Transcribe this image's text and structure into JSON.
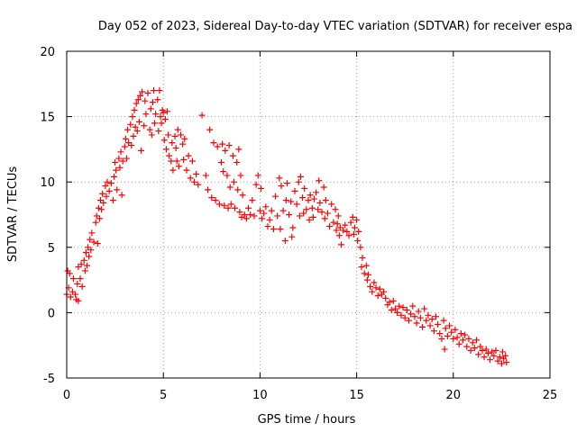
{
  "chart_data": {
    "type": "scatter",
    "title": "Day 052 of 2023, Sidereal Day-to-day VTEC variation (SDTVAR) for receiver espa",
    "xlabel": "GPS time / hours",
    "ylabel": "SDTVAR / TECUs",
    "xlim": [
      0,
      25
    ],
    "ylim": [
      -5,
      20
    ],
    "x_ticks": [
      "0",
      "5",
      "10",
      "15",
      "20",
      "25"
    ],
    "y_ticks": [
      "-5",
      "0",
      "5",
      "10",
      "15",
      "20"
    ],
    "grid": true,
    "marker": "+",
    "series": [
      {
        "name": "SDTVAR",
        "color": "#ff0000",
        "points": [
          [
            0.0,
            1.4
          ],
          [
            0.05,
            3.2
          ],
          [
            0.1,
            1.9
          ],
          [
            0.15,
            3.0
          ],
          [
            0.2,
            1.2
          ],
          [
            0.3,
            1.6
          ],
          [
            0.35,
            2.6
          ],
          [
            0.45,
            1.4
          ],
          [
            0.5,
            1.0
          ],
          [
            0.6,
            0.9
          ],
          [
            0.55,
            2.2
          ],
          [
            0.6,
            3.5
          ],
          [
            0.7,
            2.6
          ],
          [
            0.75,
            3.7
          ],
          [
            0.8,
            2.0
          ],
          [
            0.9,
            4.0
          ],
          [
            0.95,
            3.2
          ],
          [
            1.0,
            4.6
          ],
          [
            1.05,
            3.6
          ],
          [
            1.1,
            5.0
          ],
          [
            1.15,
            4.3
          ],
          [
            1.2,
            5.6
          ],
          [
            1.25,
            4.8
          ],
          [
            1.3,
            6.1
          ],
          [
            1.4,
            5.4
          ],
          [
            1.5,
            6.9
          ],
          [
            1.55,
            7.4
          ],
          [
            1.6,
            5.3
          ],
          [
            1.65,
            8.0
          ],
          [
            1.7,
            7.2
          ],
          [
            1.75,
            8.6
          ],
          [
            1.8,
            7.9
          ],
          [
            1.85,
            9.1
          ],
          [
            1.9,
            8.4
          ],
          [
            2.0,
            9.7
          ],
          [
            2.05,
            8.9
          ],
          [
            2.1,
            10.0
          ],
          [
            2.2,
            9.3
          ],
          [
            2.3,
            9.9
          ],
          [
            2.4,
            8.6
          ],
          [
            2.45,
            10.4
          ],
          [
            2.5,
            11.5
          ],
          [
            2.55,
            10.9
          ],
          [
            2.6,
            9.4
          ],
          [
            2.7,
            11.8
          ],
          [
            2.75,
            11.1
          ],
          [
            2.8,
            12.3
          ],
          [
            2.85,
            9.0
          ],
          [
            2.9,
            11.6
          ],
          [
            3.0,
            12.7
          ],
          [
            3.05,
            13.3
          ],
          [
            3.1,
            11.8
          ],
          [
            3.15,
            14.0
          ],
          [
            3.2,
            13.0
          ],
          [
            3.3,
            14.4
          ],
          [
            3.35,
            12.8
          ],
          [
            3.4,
            15.0
          ],
          [
            3.45,
            13.5
          ],
          [
            3.5,
            15.5
          ],
          [
            3.55,
            14.2
          ],
          [
            3.6,
            16.0
          ],
          [
            3.65,
            13.9
          ],
          [
            3.7,
            16.3
          ],
          [
            3.75,
            14.6
          ],
          [
            3.8,
            16.6
          ],
          [
            3.85,
            12.4
          ],
          [
            3.9,
            16.9
          ],
          [
            4.0,
            14.3
          ],
          [
            4.05,
            16.2
          ],
          [
            4.1,
            15.2
          ],
          [
            4.2,
            16.8
          ],
          [
            4.3,
            14.0
          ],
          [
            4.35,
            15.6
          ],
          [
            4.4,
            13.6
          ],
          [
            4.45,
            16.1
          ],
          [
            4.5,
            17.0
          ],
          [
            4.55,
            14.5
          ],
          [
            4.6,
            15.2
          ],
          [
            4.7,
            16.3
          ],
          [
            4.75,
            13.9
          ],
          [
            4.8,
            17.0
          ],
          [
            4.85,
            15.0
          ],
          [
            4.9,
            14.5
          ],
          [
            4.95,
            15.5
          ],
          [
            5.0,
            15.3
          ],
          [
            5.05,
            13.2
          ],
          [
            5.1,
            14.8
          ],
          [
            5.15,
            12.5
          ],
          [
            5.2,
            15.4
          ],
          [
            5.25,
            13.6
          ],
          [
            5.3,
            12.0
          ],
          [
            5.4,
            11.6
          ],
          [
            5.45,
            13.0
          ],
          [
            5.5,
            10.9
          ],
          [
            5.6,
            13.5
          ],
          [
            5.65,
            12.6
          ],
          [
            5.7,
            11.6
          ],
          [
            5.75,
            14.0
          ],
          [
            5.8,
            11.2
          ],
          [
            5.9,
            13.6
          ],
          [
            6.0,
            12.9
          ],
          [
            6.05,
            11.7
          ],
          [
            6.1,
            13.3
          ],
          [
            6.2,
            10.9
          ],
          [
            6.3,
            12.0
          ],
          [
            6.4,
            10.3
          ],
          [
            6.5,
            11.6
          ],
          [
            6.6,
            10.0
          ],
          [
            6.7,
            10.6
          ],
          [
            6.8,
            9.8
          ],
          [
            7.0,
            15.1
          ],
          [
            7.2,
            10.5
          ],
          [
            7.3,
            9.4
          ],
          [
            7.4,
            14.0
          ],
          [
            7.5,
            8.8
          ],
          [
            7.6,
            13.0
          ],
          [
            7.7,
            8.6
          ],
          [
            7.8,
            12.7
          ],
          [
            7.9,
            8.3
          ],
          [
            8.0,
            11.5
          ],
          [
            8.05,
            12.9
          ],
          [
            8.1,
            10.8
          ],
          [
            8.15,
            8.2
          ],
          [
            8.2,
            12.4
          ],
          [
            8.3,
            10.5
          ],
          [
            8.35,
            8.0
          ],
          [
            8.4,
            12.8
          ],
          [
            8.45,
            9.6
          ],
          [
            8.5,
            8.3
          ],
          [
            8.6,
            12.0
          ],
          [
            8.65,
            10.0
          ],
          [
            8.7,
            8.0
          ],
          [
            8.8,
            11.5
          ],
          [
            8.85,
            9.4
          ],
          [
            8.9,
            12.5
          ],
          [
            8.95,
            7.7
          ],
          [
            9.0,
            10.5
          ],
          [
            9.05,
            7.3
          ],
          [
            9.1,
            9.0
          ],
          [
            9.2,
            7.5
          ],
          [
            9.3,
            7.2
          ],
          [
            9.4,
            8.0
          ],
          [
            9.5,
            7.5
          ],
          [
            9.6,
            8.6
          ],
          [
            9.7,
            7.4
          ],
          [
            9.8,
            9.8
          ],
          [
            9.9,
            10.5
          ],
          [
            10.0,
            7.8
          ],
          [
            10.05,
            9.5
          ],
          [
            10.1,
            7.2
          ],
          [
            10.2,
            7.6
          ],
          [
            10.3,
            8.1
          ],
          [
            10.4,
            6.6
          ],
          [
            10.5,
            7.1
          ],
          [
            10.6,
            7.8
          ],
          [
            10.7,
            6.4
          ],
          [
            10.8,
            8.9
          ],
          [
            10.9,
            7.4
          ],
          [
            11.0,
            10.3
          ],
          [
            11.05,
            6.4
          ],
          [
            11.1,
            9.7
          ],
          [
            11.2,
            7.8
          ],
          [
            11.3,
            5.5
          ],
          [
            11.35,
            8.6
          ],
          [
            11.4,
            9.9
          ],
          [
            11.5,
            7.5
          ],
          [
            11.6,
            8.5
          ],
          [
            11.65,
            5.8
          ],
          [
            11.7,
            6.5
          ],
          [
            11.8,
            9.3
          ],
          [
            11.9,
            8.3
          ],
          [
            12.0,
            10.0
          ],
          [
            12.05,
            7.4
          ],
          [
            12.1,
            10.4
          ],
          [
            12.2,
            8.8
          ],
          [
            12.25,
            7.6
          ],
          [
            12.3,
            9.5
          ],
          [
            12.4,
            7.9
          ],
          [
            12.5,
            8.6
          ],
          [
            12.55,
            7.1
          ],
          [
            12.6,
            9.0
          ],
          [
            12.7,
            8.0
          ],
          [
            12.75,
            7.3
          ],
          [
            12.8,
            8.7
          ],
          [
            12.9,
            9.2
          ],
          [
            13.0,
            7.9
          ],
          [
            13.05,
            10.1
          ],
          [
            13.1,
            8.4
          ],
          [
            13.2,
            7.7
          ],
          [
            13.3,
            9.6
          ],
          [
            13.35,
            7.2
          ],
          [
            13.4,
            8.6
          ],
          [
            13.5,
            7.6
          ],
          [
            13.6,
            6.6
          ],
          [
            13.7,
            8.3
          ],
          [
            13.8,
            6.9
          ],
          [
            13.9,
            7.9
          ],
          [
            13.95,
            6.3
          ],
          [
            14.0,
            6.8
          ],
          [
            14.05,
            7.4
          ],
          [
            14.1,
            5.9
          ],
          [
            14.15,
            6.5
          ],
          [
            14.2,
            5.2
          ],
          [
            14.3,
            6.3
          ],
          [
            14.4,
            6.7
          ],
          [
            14.5,
            6.2
          ],
          [
            14.6,
            5.9
          ],
          [
            14.7,
            6.9
          ],
          [
            14.8,
            7.3
          ],
          [
            14.85,
            6.0
          ],
          [
            14.9,
            6.5
          ],
          [
            15.0,
            7.1
          ],
          [
            15.05,
            5.5
          ],
          [
            15.1,
            6.2
          ],
          [
            15.2,
            5.0
          ],
          [
            15.25,
            3.5
          ],
          [
            15.3,
            4.2
          ],
          [
            15.4,
            3.0
          ],
          [
            15.5,
            3.6
          ],
          [
            15.55,
            2.5
          ],
          [
            15.6,
            2.9
          ],
          [
            15.7,
            2.0
          ],
          [
            15.8,
            1.6
          ],
          [
            15.9,
            2.3
          ],
          [
            16.0,
            1.9
          ],
          [
            16.1,
            1.3
          ],
          [
            16.2,
            1.8
          ],
          [
            16.3,
            1.4
          ],
          [
            16.4,
            1.6
          ],
          [
            16.5,
            1.1
          ],
          [
            16.6,
            0.6
          ],
          [
            16.7,
            0.8
          ],
          [
            16.8,
            0.2
          ],
          [
            16.9,
            0.9
          ],
          [
            17.0,
            0.3
          ],
          [
            17.1,
            0.0
          ],
          [
            17.2,
            0.5
          ],
          [
            17.3,
            -0.2
          ],
          [
            17.4,
            0.4
          ],
          [
            17.5,
            -0.4
          ],
          [
            17.6,
            0.2
          ],
          [
            17.7,
            -0.6
          ],
          [
            17.8,
            -0.1
          ],
          [
            17.9,
            0.5
          ],
          [
            18.0,
            -0.3
          ],
          [
            18.1,
            -0.8
          ],
          [
            18.2,
            0.1
          ],
          [
            18.3,
            -0.4
          ],
          [
            18.4,
            -1.1
          ],
          [
            18.5,
            0.3
          ],
          [
            18.6,
            -0.6
          ],
          [
            18.7,
            -0.2
          ],
          [
            18.8,
            -1.0
          ],
          [
            18.9,
            -0.5
          ],
          [
            19.0,
            -1.4
          ],
          [
            19.1,
            -0.3
          ],
          [
            19.2,
            -0.9
          ],
          [
            19.3,
            -1.6
          ],
          [
            19.4,
            -2.0
          ],
          [
            19.5,
            -0.6
          ],
          [
            19.55,
            -2.8
          ],
          [
            19.6,
            -1.2
          ],
          [
            19.7,
            -1.8
          ],
          [
            19.8,
            -1.0
          ],
          [
            19.9,
            -1.5
          ],
          [
            20.0,
            -2.0
          ],
          [
            20.1,
            -1.3
          ],
          [
            20.2,
            -1.9
          ],
          [
            20.3,
            -2.4
          ],
          [
            20.4,
            -1.6
          ],
          [
            20.5,
            -2.1
          ],
          [
            20.6,
            -1.7
          ],
          [
            20.7,
            -2.6
          ],
          [
            20.8,
            -2.0
          ],
          [
            20.9,
            -2.9
          ],
          [
            21.0,
            -2.3
          ],
          [
            21.1,
            -2.7
          ],
          [
            21.2,
            -2.1
          ],
          [
            21.3,
            -3.2
          ],
          [
            21.4,
            -2.6
          ],
          [
            21.5,
            -2.9
          ],
          [
            21.6,
            -3.4
          ],
          [
            21.7,
            -2.8
          ],
          [
            21.8,
            -3.1
          ],
          [
            21.9,
            -3.6
          ],
          [
            22.0,
            -3.0
          ],
          [
            22.1,
            -3.3
          ],
          [
            22.2,
            -2.9
          ],
          [
            22.3,
            -3.7
          ],
          [
            22.4,
            -3.4
          ],
          [
            22.5,
            -3.9
          ],
          [
            22.55,
            -3.0
          ],
          [
            22.6,
            -3.5
          ],
          [
            22.7,
            -3.3
          ],
          [
            22.75,
            -3.8
          ]
        ]
      }
    ]
  }
}
